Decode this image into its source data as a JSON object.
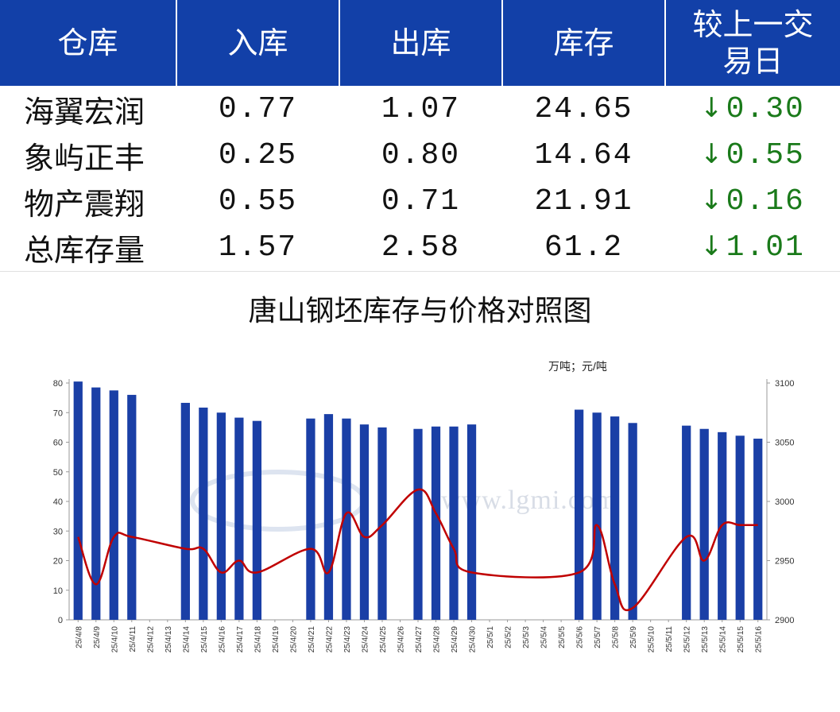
{
  "table": {
    "headers": [
      "仓库",
      "入库",
      "出库",
      "库存",
      "较上一交易日"
    ],
    "rows": [
      {
        "name": "海翼宏润",
        "in": "0.77",
        "out": "1.07",
        "stock": "24.65",
        "change": "0.30",
        "direction": "down"
      },
      {
        "name": "象屿正丰",
        "in": "0.25",
        "out": "0.80",
        "stock": "14.64",
        "change": "0.55",
        "direction": "down"
      },
      {
        "name": "物产震翔",
        "in": "0.55",
        "out": "0.71",
        "stock": "21.91",
        "change": "0.16",
        "direction": "down"
      },
      {
        "name": "总库存量",
        "in": "1.57",
        "out": "2.58",
        "stock": "61.2",
        "change": "1.01",
        "direction": "down"
      }
    ],
    "change_color": "#1a7a1a",
    "header_bg": "#1240a8"
  },
  "chart_data": {
    "type": "bar",
    "title": "唐山钢坯库存与价格对照图",
    "unit_label": "万吨；元/吨",
    "watermark": "www.lgmi.com",
    "categories": [
      "25/4/8",
      "25/4/9",
      "25/4/10",
      "25/4/11",
      "25/4/12",
      "25/4/13",
      "25/4/14",
      "25/4/15",
      "25/4/16",
      "25/4/17",
      "25/4/18",
      "25/4/19",
      "25/4/20",
      "25/4/21",
      "25/4/22",
      "25/4/23",
      "25/4/24",
      "25/4/25",
      "25/4/26",
      "25/4/27",
      "25/4/28",
      "25/4/29",
      "25/4/30",
      "25/5/1",
      "25/5/2",
      "25/5/3",
      "25/5/4",
      "25/5/5",
      "25/5/6",
      "25/5/7",
      "25/5/8",
      "25/5/9",
      "25/5/10",
      "25/5/11",
      "25/5/12",
      "25/5/13",
      "25/5/14",
      "25/5/15",
      "25/5/16"
    ],
    "series": [
      {
        "axis": "left",
        "type": "bar",
        "color": "#1a3fa6",
        "values": [
          80.5,
          78.5,
          77.5,
          76,
          null,
          null,
          73.3,
          71.7,
          70,
          68.3,
          67.2,
          null,
          null,
          68,
          69.5,
          68,
          66,
          65,
          null,
          64.5,
          65.3,
          65.3,
          66,
          null,
          null,
          null,
          null,
          null,
          71,
          70,
          68.7,
          66.5,
          null,
          null,
          65.6,
          64.5,
          63.4,
          62.2,
          61.2
        ]
      },
      {
        "axis": "right",
        "type": "line",
        "color": "#c00000",
        "values": [
          2970,
          2930,
          2970,
          2970,
          null,
          null,
          2960,
          2960,
          2940,
          2950,
          2940,
          null,
          null,
          2960,
          2940,
          2990,
          2970,
          2980,
          null,
          3010,
          2990,
          2960,
          2940,
          null,
          null,
          null,
          null,
          null,
          2940,
          2980,
          2930,
          2910,
          null,
          null,
          2970,
          2950,
          2980,
          2980,
          2980
        ]
      }
    ],
    "left_axis": {
      "min": 0,
      "max": 80,
      "ticks": [
        0,
        10,
        20,
        30,
        40,
        50,
        60,
        70,
        80
      ]
    },
    "right_axis": {
      "min": 2900,
      "max": 3100,
      "ticks": [
        2900,
        2950,
        3000,
        3050,
        3100
      ]
    },
    "grid": false,
    "legend": "none"
  }
}
